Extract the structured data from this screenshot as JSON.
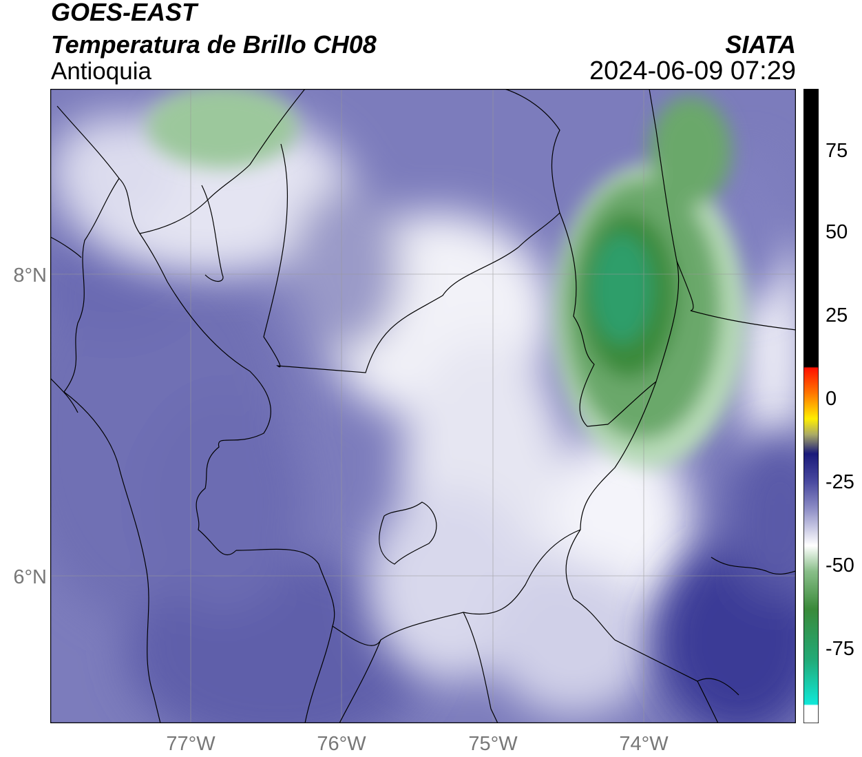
{
  "header": {
    "satellite": "GOES-EAST",
    "product": "Temperatura de Brillo CH08",
    "region": "Antioquia",
    "organization": "SIATA",
    "timestamp": "2024-06-09 07:29"
  },
  "map": {
    "lat_labels": [
      "8°N",
      "6°N"
    ],
    "lon_labels": [
      "77°W",
      "76°W",
      "75°W",
      "74°W"
    ]
  },
  "colorbar": {
    "ticks": [
      "75",
      "50",
      "25",
      "0",
      "-25",
      "-50",
      "-75"
    ],
    "colors": {
      "black": "#000000",
      "red": "#ff2200",
      "orange": "#ffa500",
      "yellow": "#ffff00",
      "navy": "#1a1a7a",
      "blue_lavender": "#6a6ab0",
      "white": "#ffffff",
      "green": "#3a8a3a",
      "teal": "#10d0c0"
    }
  }
}
